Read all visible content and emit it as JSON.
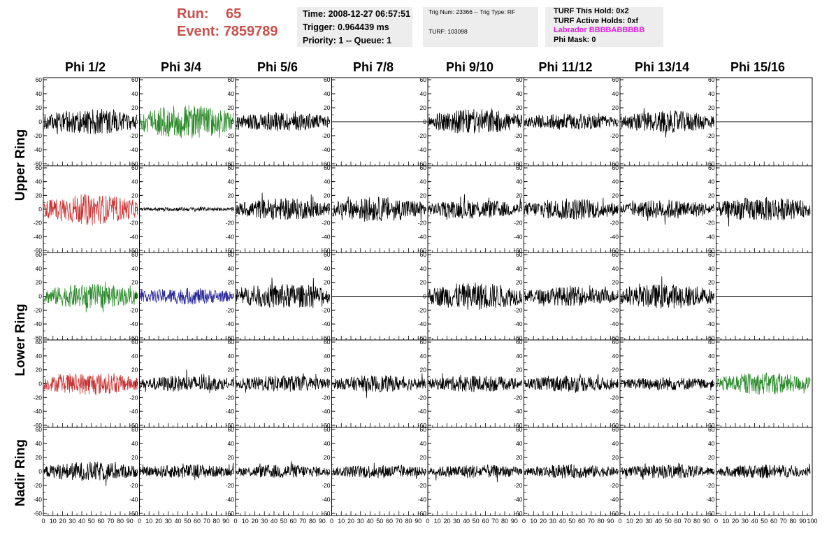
{
  "header": {
    "run_label": "Run:",
    "run_value": "65",
    "event_label": "Event:",
    "event_value": "7859789"
  },
  "info_time": {
    "time": "Time: 2008-12-27 06:57:51",
    "trigger": "Trigger: 0.964439 ms",
    "priority": "Priority: 1 -- Queue: 1"
  },
  "info_trig": {
    "trig": "Trig Num: 23366 -- Trig Type: RF",
    "turf": "TURF: 103098"
  },
  "info_turf": {
    "this_hold": "TURF This Hold: 0x2",
    "active_holds": "TURF Active Holds: 0xf",
    "labrador": "Labrador BBBBABBBBB",
    "phi_mask": "Phi Mask: 0"
  },
  "phi_labels": [
    "Phi 1/2",
    "Phi 3/4",
    "Phi 5/6",
    "Phi 7/8",
    "Phi 9/10",
    "Phi 11/12",
    "Phi 13/14",
    "Phi 15/16"
  ],
  "ring_labels": {
    "upper": "Upper Ring",
    "lower": "Lower Ring",
    "nadir": "Nadir Ring"
  },
  "axis": {
    "y_ticks": [
      "60",
      "40",
      "20",
      "0",
      "-20",
      "-40",
      "-60"
    ],
    "x_ticks": [
      "0",
      "10",
      "20",
      "30",
      "40",
      "50",
      "60",
      "70",
      "80",
      "90",
      "100"
    ]
  },
  "colors": {
    "black": "#000000",
    "green": "#2a8a2a",
    "red": "#c83232",
    "blue": "#2a2a9a",
    "accent_red": "#c8504b",
    "magenta": "#e020e0"
  },
  "chart_data": {
    "type": "line",
    "title": "",
    "xlabel": "",
    "ylabel": "",
    "xlim": [
      0,
      100
    ],
    "ylim": [
      -60,
      60
    ],
    "grid": false,
    "panels": {
      "rows": 5,
      "cols": 8,
      "waveform_colors": [
        [
          "black",
          "green",
          "black",
          "flat",
          "black",
          "black",
          "black",
          "flat"
        ],
        [
          "red",
          "black",
          "black",
          "black",
          "black",
          "black",
          "black",
          "black"
        ],
        [
          "green",
          "blue",
          "black",
          "flat",
          "black",
          "black",
          "black",
          "flat"
        ],
        [
          "red",
          "black",
          "black",
          "black",
          "black",
          "black",
          "black",
          "green"
        ],
        [
          "black",
          "black",
          "black",
          "black",
          "black",
          "black",
          "black",
          "black"
        ]
      ],
      "amplitude": [
        [
          18,
          24,
          14,
          0,
          18,
          12,
          16,
          0
        ],
        [
          22,
          3,
          16,
          18,
          14,
          16,
          14,
          18
        ],
        [
          18,
          12,
          18,
          0,
          20,
          14,
          18,
          0
        ],
        [
          16,
          12,
          12,
          12,
          12,
          12,
          10,
          16
        ],
        [
          14,
          10,
          10,
          10,
          10,
          10,
          10,
          10
        ]
      ]
    }
  }
}
